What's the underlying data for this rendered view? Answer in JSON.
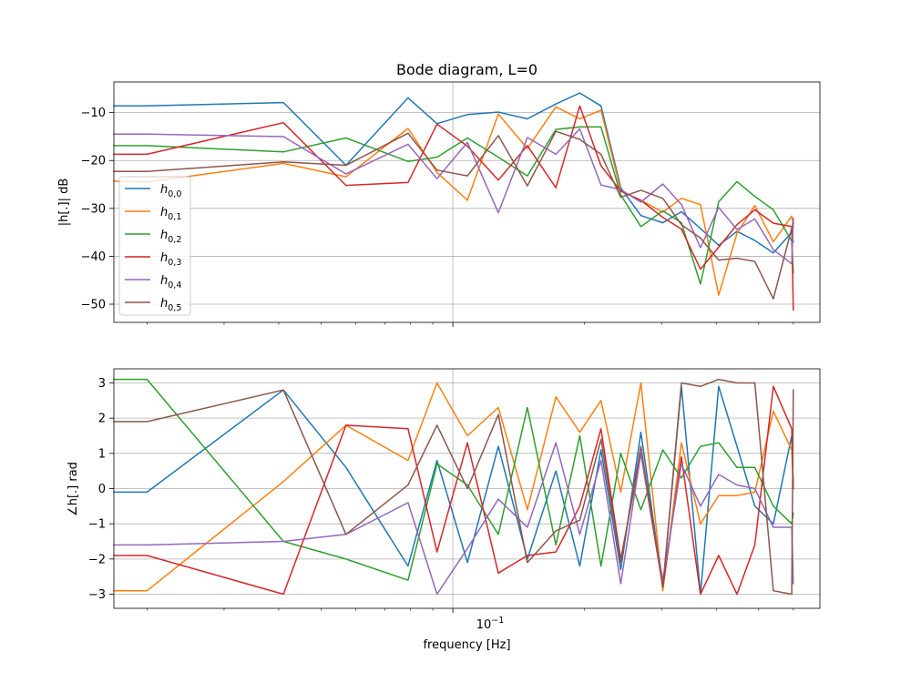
{
  "chart_data": {
    "title": "Bode diagram, L=0",
    "xlabel": "frequency [Hz]",
    "xscale": "log",
    "xlim": [
      0.0168,
      0.69
    ],
    "x_tick_label": "10",
    "x_tick_exponent": "−1",
    "grid": true,
    "colors": [
      "#1f77b4",
      "#ff7f0e",
      "#2ca02c",
      "#d62728",
      "#9467bd",
      "#8c564b"
    ],
    "legend": {
      "placement": "lower-left",
      "entries": [
        {
          "base": "h",
          "sub": "0,0"
        },
        {
          "base": "h",
          "sub": "0,1"
        },
        {
          "base": "h",
          "sub": "0,2"
        },
        {
          "base": "h",
          "sub": "0,3"
        },
        {
          "base": "h",
          "sub": "0,4"
        },
        {
          "base": "h",
          "sub": "0,5"
        }
      ]
    },
    "magnitude": {
      "type": "line",
      "ylabel": "|h[.]| dB",
      "ylim": [
        -53.8,
        -3.6
      ],
      "yticks": [
        -10,
        -20,
        -30,
        -40,
        -50
      ],
      "x": [
        0.0168,
        0.02,
        0.041,
        0.057,
        0.079,
        0.092,
        0.108,
        0.127,
        0.148,
        0.172,
        0.195,
        0.218,
        0.242,
        0.269,
        0.302,
        0.333,
        0.368,
        0.405,
        0.446,
        0.49,
        0.54,
        0.595,
        0.6
      ],
      "series": [
        {
          "values": [
            -8.6,
            -8.6,
            -7.9,
            -21.0,
            -6.9,
            -12.3,
            -10.4,
            -9.9,
            -11.3,
            -8.2,
            -5.9,
            -8.6,
            -25.7,
            -31.5,
            -33.0,
            -30.7,
            -34.2,
            -37.7,
            -34.8,
            -36.7,
            -39.3,
            -35.0,
            -37.0
          ]
        },
        {
          "values": [
            -24.3,
            -24.5,
            -20.6,
            -23.4,
            -13.3,
            -22.5,
            -28.3,
            -10.3,
            -17.5,
            -8.8,
            -11.3,
            -9.5,
            -26.3,
            -28.3,
            -30.8,
            -27.9,
            -29.2,
            -48.1,
            -35.2,
            -29.4,
            -37.0,
            -31.6,
            -34.0
          ]
        },
        {
          "values": [
            -16.9,
            -16.9,
            -18.2,
            -15.3,
            -20.2,
            -19.3,
            -15.3,
            -19.3,
            -23.2,
            -13.5,
            -13.0,
            -13.0,
            -27.2,
            -33.8,
            -30.5,
            -33.0,
            -45.8,
            -28.6,
            -24.4,
            -27.5,
            -30.3,
            -36.8,
            -43.5
          ]
        },
        {
          "values": [
            -18.7,
            -18.7,
            -12.1,
            -25.2,
            -24.6,
            -12.4,
            -17.0,
            -24.1,
            -16.9,
            -25.7,
            -8.6,
            -21.1,
            -26.4,
            -28.3,
            -31.9,
            -34.3,
            -42.7,
            -38.1,
            -33.4,
            -30.3,
            -33.1,
            -33.8,
            -51.2
          ]
        },
        {
          "values": [
            -14.5,
            -14.5,
            -15.0,
            -22.8,
            -16.6,
            -23.8,
            -16.2,
            -30.9,
            -15.2,
            -18.7,
            -13.4,
            -25.1,
            -26.1,
            -28.7,
            -24.9,
            -29.2,
            -38.2,
            -29.8,
            -34.4,
            -32.2,
            -38.6,
            -41.6,
            -32.1
          ]
        },
        {
          "values": [
            -22.3,
            -22.3,
            -20.3,
            -21.0,
            -14.3,
            -22.0,
            -23.2,
            -14.8,
            -25.3,
            -13.9,
            -15.6,
            -18.7,
            -27.7,
            -26.2,
            -27.9,
            -33.4,
            -36.2,
            -40.8,
            -40.4,
            -41.1,
            -48.9,
            -34.1,
            -33.1
          ]
        }
      ]
    },
    "phase": {
      "type": "line",
      "ylabel": "∠h[.] rad",
      "ylim": [
        -3.4,
        3.4
      ],
      "yticks": [
        3,
        2,
        1,
        0,
        -1,
        -2,
        -3
      ],
      "x": [
        0.0168,
        0.02,
        0.041,
        0.057,
        0.079,
        0.092,
        0.108,
        0.127,
        0.148,
        0.172,
        0.195,
        0.218,
        0.242,
        0.269,
        0.302,
        0.333,
        0.368,
        0.405,
        0.446,
        0.49,
        0.54,
        0.595,
        0.6
      ],
      "series": [
        {
          "values": [
            -0.1,
            -0.1,
            2.8,
            0.6,
            -2.2,
            0.8,
            -2.1,
            1.2,
            -2.0,
            0.5,
            -2.2,
            1.1,
            -2.3,
            1.6,
            -2.8,
            2.9,
            -3.0,
            2.9,
            1.2,
            -0.5,
            -1.0,
            1.5,
            0.0
          ]
        },
        {
          "values": [
            -2.9,
            -2.9,
            0.2,
            1.8,
            0.8,
            3.0,
            1.5,
            2.3,
            -0.6,
            2.6,
            1.6,
            2.5,
            -0.1,
            3.0,
            -2.9,
            1.3,
            -1.0,
            -0.2,
            -0.2,
            -0.1,
            2.2,
            1.1,
            0.0
          ]
        },
        {
          "values": [
            3.1,
            3.1,
            -1.5,
            -2.0,
            -2.6,
            0.7,
            0.1,
            -1.3,
            2.3,
            -1.6,
            1.5,
            -2.2,
            1.0,
            -0.6,
            1.1,
            0.3,
            1.2,
            1.3,
            0.6,
            0.6,
            -0.5,
            -1.0,
            -0.7
          ]
        },
        {
          "values": [
            -1.9,
            -1.9,
            -3.0,
            1.8,
            1.7,
            -1.8,
            1.3,
            -2.4,
            -1.9,
            -1.8,
            -0.5,
            1.7,
            -2.0,
            1.0,
            -2.8,
            0.9,
            -3.0,
            -1.9,
            -3.0,
            -1.6,
            2.9,
            1.7,
            0.0
          ]
        },
        {
          "values": [
            -1.6,
            -1.6,
            -1.5,
            -1.3,
            -0.4,
            -3.0,
            -1.7,
            -0.3,
            -1.1,
            1.3,
            -1.3,
            0.8,
            -2.7,
            1.0,
            -2.6,
            0.7,
            -0.5,
            0.4,
            0.1,
            0.0,
            -1.1,
            -1.1,
            -2.7
          ]
        },
        {
          "values": [
            1.9,
            1.9,
            2.8,
            -1.3,
            0.1,
            1.8,
            0.0,
            2.1,
            -2.1,
            -1.2,
            -0.9,
            1.4,
            -2.1,
            1.2,
            -2.8,
            3.0,
            2.9,
            3.1,
            3.0,
            3.0,
            -2.9,
            -3.0,
            2.8
          ]
        }
      ]
    }
  }
}
